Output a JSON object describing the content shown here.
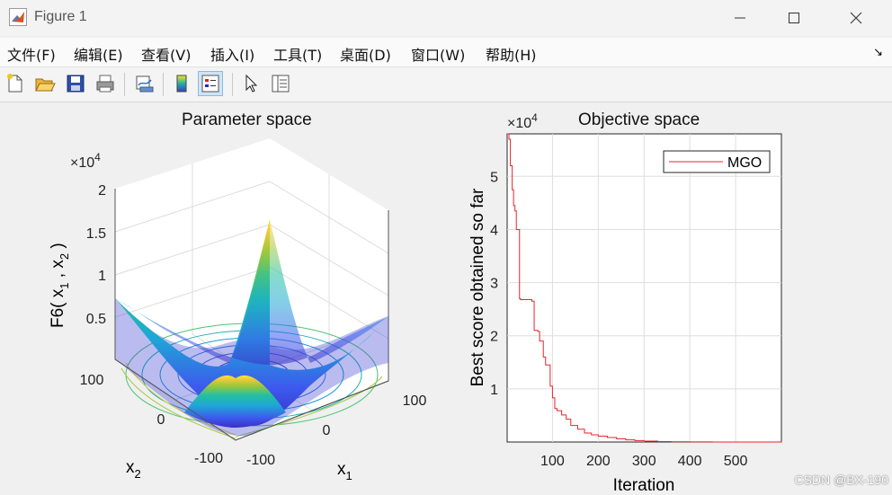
{
  "window": {
    "title": "Figure 1"
  },
  "menu": [
    "文件(F)",
    "编辑(E)",
    "查看(V)",
    "插入(I)",
    "工具(T)",
    "桌面(D)",
    "窗口(W)",
    "帮助(H)"
  ],
  "toolbar_icons": [
    "new-figure-icon",
    "open-file-icon",
    "save-icon",
    "print-icon",
    "link-plot-icon",
    "colorbar-icon",
    "legend-icon",
    "pointer-icon",
    "property-inspector-icon"
  ],
  "left_plot": {
    "title": "Parameter space",
    "exponent": "×10",
    "exponent_power": "4",
    "zlabel_main": "F6( x",
    "zlabel_sub1": "1",
    "zlabel_mid": " , x",
    "zlabel_sub2": "2",
    "zlabel_end": " )",
    "xlabel": "x",
    "xlabel_sub": "1",
    "ylabel": "x",
    "ylabel_sub": "2",
    "z_ticks": [
      "2",
      "1.5",
      "1",
      "0.5"
    ],
    "x_ticks": [
      "-100",
      "0",
      "100"
    ],
    "y_ticks": [
      "100",
      "0",
      "-100"
    ]
  },
  "right_plot": {
    "title": "Objective space",
    "exponent": "×10",
    "exponent_power": "4",
    "xlabel": "Iteration",
    "ylabel": "Best score obtained so far",
    "legend": "MGO",
    "line_color": "#e8242b"
  },
  "chart_data": [
    {
      "type": "surface",
      "title": "Parameter space",
      "function": "F6",
      "x_range": [
        -100,
        100
      ],
      "y_range": [
        -100,
        100
      ],
      "z_range": [
        0,
        20000
      ],
      "z_ticks": [
        5000,
        10000,
        15000,
        20000
      ],
      "contours_on_floor": true,
      "grid": true
    },
    {
      "type": "line",
      "title": "Objective space",
      "xlabel": "Iteration",
      "ylabel": "Best score obtained so far",
      "xlim": [
        1,
        600
      ],
      "ylim": [
        0,
        58000
      ],
      "x_ticks": [
        100,
        200,
        300,
        400,
        500
      ],
      "y_ticks": [
        10000,
        20000,
        30000,
        40000,
        50000
      ],
      "grid": true,
      "legend_position": "top-right",
      "series": [
        {
          "name": "MGO",
          "x": [
            1,
            5,
            8,
            12,
            15,
            18,
            21,
            28,
            30,
            55,
            60,
            68,
            72,
            80,
            85,
            95,
            100,
            105,
            110,
            120,
            130,
            140,
            155,
            170,
            185,
            200,
            220,
            240,
            260,
            280,
            300,
            330,
            360,
            400,
            450,
            500,
            550,
            600
          ],
          "y": [
            58000,
            57000,
            52000,
            47500,
            44500,
            43500,
            40000,
            27000,
            26800,
            26500,
            21000,
            20800,
            19000,
            16000,
            14500,
            10500,
            8300,
            6300,
            5900,
            5100,
            4300,
            3100,
            2400,
            1700,
            1350,
            1100,
            850,
            600,
            400,
            280,
            160,
            90,
            40,
            20,
            10,
            5,
            2,
            1
          ]
        }
      ]
    }
  ]
}
